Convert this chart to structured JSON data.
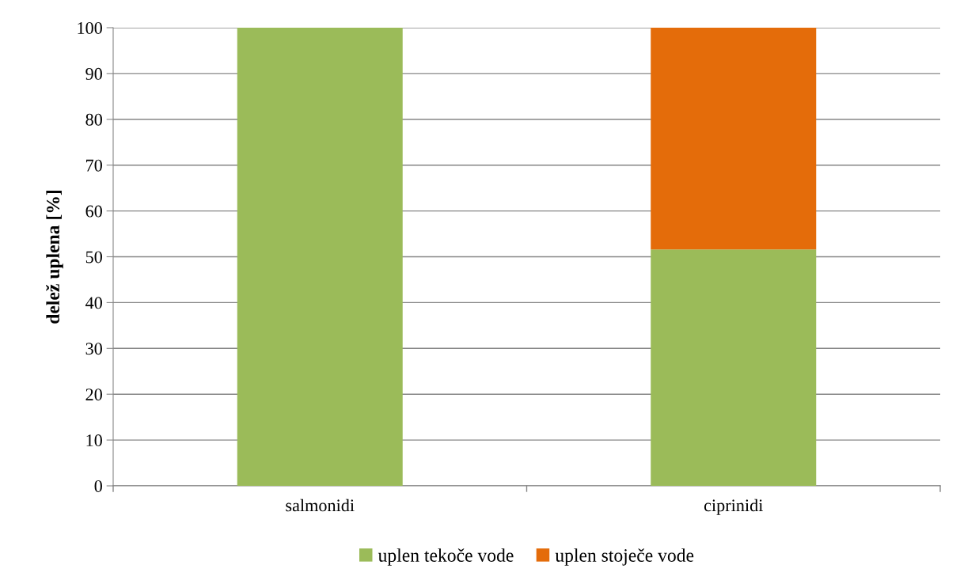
{
  "chart_data": {
    "type": "bar",
    "stacked": true,
    "ylabel": "delež uplena [%]",
    "categories": [
      "salmonidi",
      "ciprinidi"
    ],
    "series": [
      {
        "name": "uplen tekoče vode",
        "color": "#9bbb59",
        "values": [
          100,
          51.6
        ]
      },
      {
        "name": "uplen stoječe vode",
        "color": "#e46c0a",
        "values": [
          0,
          48.4
        ]
      }
    ],
    "ylim": [
      0,
      100
    ],
    "yticks": [
      0,
      10,
      20,
      30,
      40,
      50,
      60,
      70,
      80,
      90,
      100
    ],
    "grid": "y",
    "legend": "bottom"
  }
}
